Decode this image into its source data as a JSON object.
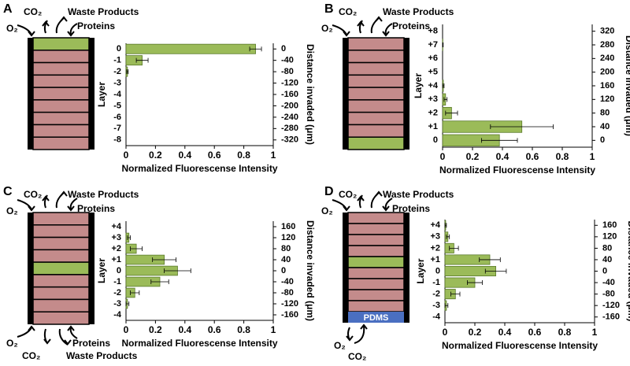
{
  "chart_data": [
    {
      "type": "bar",
      "panel_label": "A",
      "top_labels": [
        "O₂",
        "CO₂",
        "Waste Products",
        "Proteins"
      ],
      "categories": [
        "0",
        "-1",
        "-2",
        "-3",
        "-4",
        "-5",
        "-6",
        "-7",
        "-8"
      ],
      "values": [
        0.88,
        0.11,
        0.01,
        0,
        0,
        0,
        0,
        0,
        0
      ],
      "errors": [
        0.04,
        0.04,
        0.005,
        0,
        0,
        0,
        0,
        0,
        0
      ],
      "color": "#9bbb59",
      "layer_colors": [
        "#9bbb59",
        "#c48b8b",
        "#c48b8b",
        "#c48b8b",
        "#c48b8b",
        "#c48b8b",
        "#c48b8b",
        "#c48b8b",
        "#c48b8b"
      ],
      "xlabel": "Normalized Fluorescense Intensity",
      "ylabel": "Layer",
      "y2label": "Distance invaded (μm)",
      "xlim": [
        0,
        1
      ],
      "xticks": [
        0,
        0.2,
        0.4,
        0.6,
        0.8,
        1
      ],
      "y2lim": [
        -340,
        20
      ],
      "y2ticks": [
        0,
        -40,
        -80,
        -120,
        -160,
        -200,
        -240,
        -280,
        -320
      ]
    },
    {
      "type": "bar",
      "panel_label": "B",
      "top_labels": [
        "O₂",
        "CO₂",
        "Waste Products",
        "Proteins"
      ],
      "categories": [
        "+8",
        "+7",
        "+6",
        "+5",
        "+4",
        "+3",
        "+2",
        "+1",
        "0"
      ],
      "values": [
        0,
        0.002,
        0,
        0,
        0.005,
        0.02,
        0.06,
        0.53,
        0.38
      ],
      "errors": [
        0,
        0.002,
        0,
        0,
        0.005,
        0.01,
        0.04,
        0.21,
        0.12
      ],
      "color": "#9bbb59",
      "layer_colors": [
        "#c48b8b",
        "#c48b8b",
        "#c48b8b",
        "#c48b8b",
        "#c48b8b",
        "#c48b8b",
        "#c48b8b",
        "#c48b8b",
        "#9bbb59"
      ],
      "xlabel": "Normalized Fluorescense Intensity",
      "ylabel": "Layer",
      "y2label": "Distance invaded (μm)",
      "xlim": [
        0,
        1
      ],
      "xticks": [
        0,
        0.2,
        0.4,
        0.6,
        0.8,
        1
      ],
      "y2lim": [
        -20,
        340
      ],
      "y2ticks": [
        320,
        280,
        240,
        200,
        160,
        120,
        80,
        40,
        0
      ]
    },
    {
      "type": "bar",
      "panel_label": "C",
      "top_labels": [
        "O₂",
        "CO₂",
        "Waste Products",
        "Proteins"
      ],
      "bottom_labels": [
        "O₂",
        "CO₂",
        "Proteins",
        "Waste Products"
      ],
      "categories": [
        "+4",
        "+3",
        "+2",
        "+1",
        "0",
        "-1",
        "-2",
        "-3",
        "-4"
      ],
      "values": [
        0,
        0.02,
        0.07,
        0.26,
        0.35,
        0.23,
        0.06,
        0.01,
        0
      ],
      "errors": [
        0,
        0.01,
        0.04,
        0.08,
        0.09,
        0.06,
        0.03,
        0.01,
        0
      ],
      "color": "#9bbb59",
      "layer_colors": [
        "#c48b8b",
        "#c48b8b",
        "#c48b8b",
        "#c48b8b",
        "#9bbb59",
        "#c48b8b",
        "#c48b8b",
        "#c48b8b",
        "#c48b8b"
      ],
      "xlabel": "Normalized Fluorescense Intensity",
      "ylabel": "Layer",
      "y2label": "Distance invaded (μm)",
      "xlim": [
        0,
        1
      ],
      "xticks": [
        0,
        0.2,
        0.4,
        0.6,
        0.8,
        1
      ],
      "y2lim": [
        -180,
        180
      ],
      "y2ticks": [
        160,
        120,
        80,
        40,
        0,
        -40,
        -80,
        -120,
        -160
      ]
    },
    {
      "type": "bar",
      "panel_label": "D",
      "top_labels": [
        "O₂",
        "CO₂",
        "Waste Products",
        "Proteins"
      ],
      "bottom_labels": [
        "O₂",
        "CO₂"
      ],
      "material_label": "PDMS",
      "material_color": "#4a6fc1",
      "categories": [
        "+4",
        "+3",
        "+2",
        "+1",
        "0",
        "-1",
        "-2",
        "-3",
        "-4"
      ],
      "values": [
        0.005,
        0.02,
        0.06,
        0.3,
        0.34,
        0.2,
        0.07,
        0.01,
        0
      ],
      "errors": [
        0.005,
        0.01,
        0.03,
        0.07,
        0.07,
        0.05,
        0.03,
        0.01,
        0
      ],
      "color": "#9bbb59",
      "layer_colors": [
        "#c48b8b",
        "#c48b8b",
        "#c48b8b",
        "#c48b8b",
        "#9bbb59",
        "#c48b8b",
        "#c48b8b",
        "#c48b8b",
        "#c48b8b"
      ],
      "xlabel": "Normalized Fluorescense Intensity",
      "ylabel": "Layer",
      "y2label": "Distance invaded (μm)",
      "xlim": [
        0,
        1
      ],
      "xticks": [
        0,
        0.2,
        0.4,
        0.6,
        0.8,
        1
      ],
      "y2lim": [
        -180,
        180
      ],
      "y2ticks": [
        160,
        120,
        80,
        40,
        0,
        -40,
        -80,
        -120,
        -160
      ]
    }
  ]
}
